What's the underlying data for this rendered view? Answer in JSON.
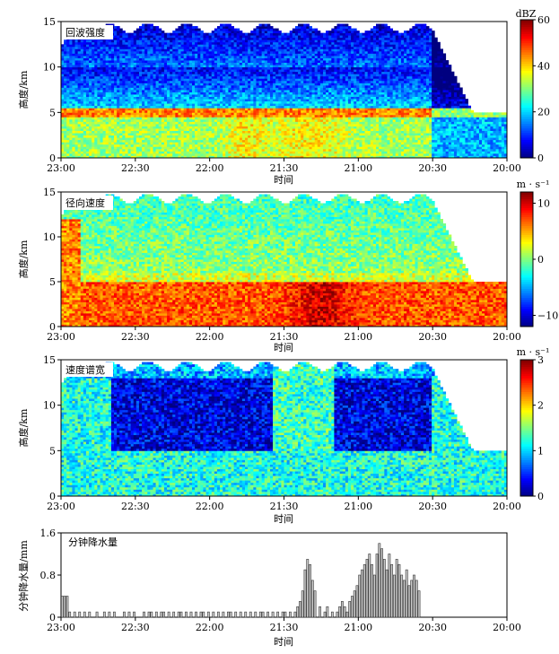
{
  "x_axis": {
    "label": "时间",
    "ticks": [
      "23:00",
      "22:30",
      "22:00",
      "21:30",
      "21:00",
      "20:30",
      "20:00"
    ]
  },
  "panels": [
    {
      "title": "回波强度",
      "ylabel": "高度/km",
      "yticks": [
        "0",
        "5",
        "10",
        "15"
      ],
      "unit": "dBZ",
      "colorbar_ticks": [
        "0",
        "20",
        "40",
        "60"
      ],
      "range": [
        0,
        60
      ]
    },
    {
      "title": "径向速度",
      "ylabel": "高度/km",
      "yticks": [
        "0",
        "5",
        "10",
        "15"
      ],
      "unit": "m · s⁻¹",
      "colorbar_ticks": [
        "−10",
        "0",
        "10"
      ],
      "range": [
        -12,
        12
      ]
    },
    {
      "title": "速度谱宽",
      "ylabel": "高度/km",
      "yticks": [
        "0",
        "5",
        "10",
        "15"
      ],
      "unit": "m · s⁻¹",
      "colorbar_ticks": [
        "0",
        "1",
        "2",
        "3"
      ],
      "range": [
        0,
        3
      ]
    }
  ],
  "chart_data": [
    {
      "type": "heatmap",
      "title": "回波强度",
      "xlabel": "时间",
      "ylabel": "高度/km",
      "x_ticks": [
        "23:00",
        "22:30",
        "22:00",
        "21:30",
        "21:00",
        "20:30",
        "20:00"
      ],
      "ylim": [
        0,
        15
      ],
      "colorbar": {
        "label": "dBZ",
        "range": [
          0,
          60
        ],
        "ticks": [
          0,
          20,
          40,
          60
        ]
      }
    },
    {
      "type": "heatmap",
      "title": "径向速度",
      "xlabel": "时间",
      "ylabel": "高度/km",
      "x_ticks": [
        "23:00",
        "22:30",
        "22:00",
        "21:30",
        "21:00",
        "20:30",
        "20:00"
      ],
      "ylim": [
        0,
        15
      ],
      "colorbar": {
        "label": "m · s⁻¹",
        "range": [
          -12,
          12
        ],
        "ticks": [
          -10,
          0,
          10
        ]
      }
    },
    {
      "type": "heatmap",
      "title": "速度谱宽",
      "xlabel": "时间",
      "ylabel": "高度/km",
      "x_ticks": [
        "23:00",
        "22:30",
        "22:00",
        "21:30",
        "21:00",
        "20:30",
        "20:00"
      ],
      "ylim": [
        0,
        15
      ],
      "colorbar": {
        "label": "m · s⁻¹",
        "range": [
          0,
          3
        ],
        "ticks": [
          0,
          1,
          2,
          3
        ]
      }
    },
    {
      "type": "bar",
      "title": "分钟降水量",
      "xlabel": "时间",
      "ylabel": "分钟降水量/mm",
      "x_ticks": [
        "23:00",
        "22:30",
        "22:00",
        "21:30",
        "21:00",
        "20:30",
        "20:00"
      ],
      "yticks": [
        "0",
        "0.8",
        "1.6"
      ],
      "ylim": [
        0,
        1.6
      ],
      "x_range_minutes_before_2300": [
        0,
        180
      ],
      "minutes_before_2300": [
        0,
        1,
        2,
        3,
        5,
        7,
        9,
        11,
        14,
        17,
        19,
        21,
        25,
        27,
        29,
        33,
        35,
        36,
        38,
        40,
        41,
        43,
        45,
        47,
        48,
        50,
        52,
        54,
        56,
        57,
        59,
        61,
        63,
        65,
        67,
        68,
        70,
        72,
        74,
        76,
        78,
        80,
        81,
        83,
        85,
        87,
        89,
        90,
        92,
        94,
        95,
        96,
        97,
        98,
        99,
        100,
        101,
        102,
        104,
        106,
        107,
        109,
        111,
        112,
        113,
        114,
        115,
        116,
        117,
        118,
        119,
        120,
        121,
        122,
        123,
        124,
        125,
        126,
        127,
        128,
        129,
        130,
        131,
        132,
        133,
        134,
        135,
        136,
        137,
        138,
        139,
        140,
        141,
        142,
        143,
        144
      ],
      "values": [
        0.4,
        0.4,
        0.4,
        0.1,
        0.1,
        0.1,
        0.1,
        0.1,
        0.1,
        0.1,
        0.1,
        0.1,
        0.1,
        0.1,
        0.1,
        0.1,
        0.1,
        0.1,
        0.1,
        0.1,
        0.1,
        0.1,
        0.1,
        0.1,
        0.1,
        0.1,
        0.1,
        0.1,
        0.1,
        0.1,
        0.1,
        0.1,
        0.1,
        0.1,
        0.1,
        0.1,
        0.1,
        0.1,
        0.1,
        0.1,
        0.1,
        0.1,
        0.1,
        0.1,
        0.1,
        0.1,
        0.1,
        0.1,
        0.1,
        0.1,
        0.2,
        0.3,
        0.5,
        0.9,
        1.1,
        1.0,
        0.7,
        0.5,
        0.2,
        0.1,
        0.2,
        0.1,
        0.1,
        0.2,
        0.3,
        0.2,
        0.1,
        0.3,
        0.4,
        0.5,
        0.6,
        0.8,
        0.9,
        1.0,
        1.1,
        1.2,
        1.0,
        0.8,
        1.2,
        1.4,
        1.3,
        1.1,
        0.9,
        1.2,
        1.0,
        0.8,
        1.1,
        1.0,
        0.8,
        0.7,
        0.9,
        0.6,
        0.7,
        0.8,
        0.7,
        0.5
      ]
    }
  ]
}
